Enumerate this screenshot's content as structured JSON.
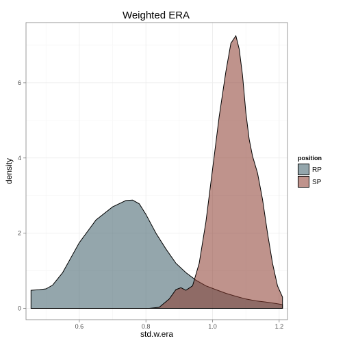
{
  "chart_data": {
    "type": "area",
    "title": "Weighted ERA",
    "xlabel": "std.w.era",
    "ylabel": "density",
    "xlim": [
      0.44,
      1.225
    ],
    "ylim": [
      -0.3,
      7.6
    ],
    "x_ticks": [
      0.6,
      0.8,
      1.0,
      1.2
    ],
    "x_tick_labels": [
      "0.6",
      "0.8",
      "1.0",
      "1.2"
    ],
    "y_ticks": [
      0,
      2,
      4,
      6
    ],
    "y_tick_labels": [
      "0",
      "2",
      "4",
      "6"
    ],
    "grid": true,
    "legend": {
      "title": "position",
      "placement": "right"
    },
    "series": [
      {
        "name": "RP",
        "color": "#3d5d68",
        "x": [
          0.455,
          0.455,
          0.48,
          0.5,
          0.52,
          0.55,
          0.6,
          0.65,
          0.7,
          0.74,
          0.76,
          0.78,
          0.8,
          0.83,
          0.86,
          0.89,
          0.92,
          0.95,
          0.98,
          1.01,
          1.04,
          1.07,
          1.1,
          1.13,
          1.16,
          1.19,
          1.21,
          1.21
        ],
        "y": [
          0,
          0.48,
          0.5,
          0.52,
          0.62,
          0.95,
          1.75,
          2.35,
          2.7,
          2.87,
          2.88,
          2.78,
          2.5,
          2.0,
          1.58,
          1.2,
          0.95,
          0.75,
          0.6,
          0.5,
          0.4,
          0.32,
          0.25,
          0.2,
          0.17,
          0.13,
          0.1,
          0
        ]
      },
      {
        "name": "SP",
        "color": "#8b3a2e",
        "x": [
          0.81,
          0.84,
          0.87,
          0.89,
          0.905,
          0.92,
          0.94,
          0.96,
          0.98,
          1.0,
          1.02,
          1.04,
          1.055,
          1.07,
          1.08,
          1.09,
          1.1,
          1.11,
          1.12,
          1.135,
          1.15,
          1.165,
          1.18,
          1.195,
          1.21,
          1.21
        ],
        "y": [
          0,
          0.03,
          0.25,
          0.5,
          0.55,
          0.48,
          0.6,
          1.2,
          2.3,
          3.7,
          5.1,
          6.3,
          7.05,
          7.25,
          6.9,
          6.2,
          5.2,
          4.5,
          4.05,
          3.6,
          2.9,
          2.0,
          1.2,
          0.6,
          0.3,
          0
        ]
      }
    ]
  }
}
